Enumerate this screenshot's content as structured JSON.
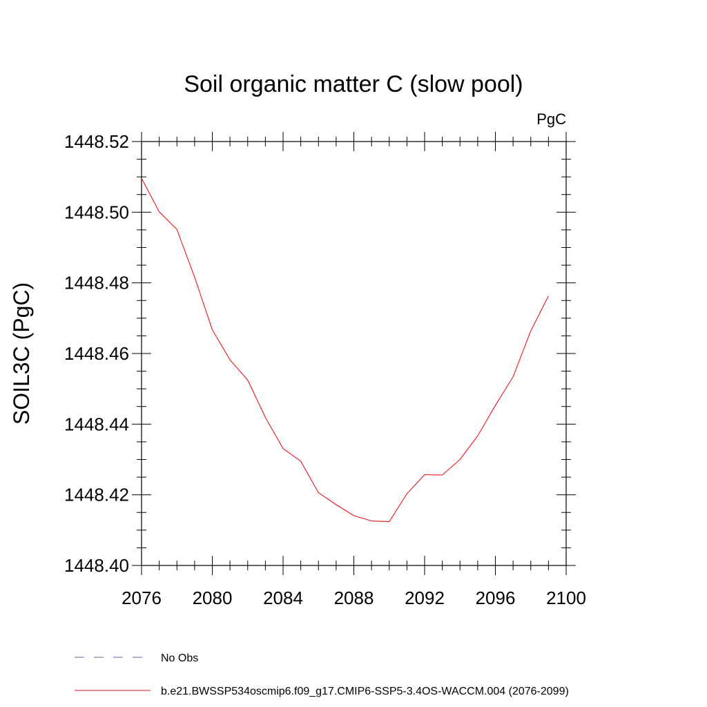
{
  "chart_data": {
    "type": "line",
    "title": "Soil organic matter C (slow pool)",
    "units": "PgC",
    "xlabel": "",
    "ylabel": "SOIL3C  (PgC)",
    "xlim": [
      2076,
      2100
    ],
    "ylim": [
      1448.4,
      1448.52
    ],
    "xticks": [
      2076,
      2080,
      2084,
      2088,
      2092,
      2096,
      2100
    ],
    "xtick_labels": [
      "2076",
      "2080",
      "2084",
      "2088",
      "2092",
      "2096",
      "2100"
    ],
    "yticks": [
      1448.4,
      1448.42,
      1448.44,
      1448.46,
      1448.48,
      1448.5,
      1448.52
    ],
    "ytick_labels": [
      "1448.40",
      "1448.42",
      "1448.44",
      "1448.46",
      "1448.48",
      "1448.50",
      "1448.52"
    ],
    "grid": false,
    "legend_position": "bottom",
    "series": [
      {
        "name": "b.e21.BWSSP534oscmip6.f09_g17.CMIP6-SSP5-3.4OS-WACCM.004 (2076-2099)",
        "color": "#e8141c",
        "style": "solid",
        "x": [
          2076,
          2077,
          2078,
          2079,
          2080,
          2081,
          2082,
          2083,
          2084,
          2085,
          2086,
          2087,
          2088,
          2089,
          2090,
          2091,
          2092,
          2093,
          2094,
          2095,
          2096,
          2097,
          2098,
          2099
        ],
        "y": [
          1448.5096,
          1448.5001,
          1448.4951,
          1448.4816,
          1448.4667,
          1448.4582,
          1448.4525,
          1448.4419,
          1448.4331,
          1448.4295,
          1448.4206,
          1448.4172,
          1448.4141,
          1448.4126,
          1448.4124,
          1448.4203,
          1448.4257,
          1448.4256,
          1448.43,
          1448.4367,
          1448.4453,
          1448.4534,
          1448.4664,
          1448.4763
        ]
      }
    ],
    "legend": [
      {
        "label": "No Obs",
        "color": "#6a5ea8",
        "style": "dashed"
      },
      {
        "label": "b.e21.BWSSP534oscmip6.f09_g17.CMIP6-SSP5-3.4OS-WACCM.004 (2076-2099)",
        "color": "#e8141c",
        "style": "solid"
      }
    ]
  }
}
